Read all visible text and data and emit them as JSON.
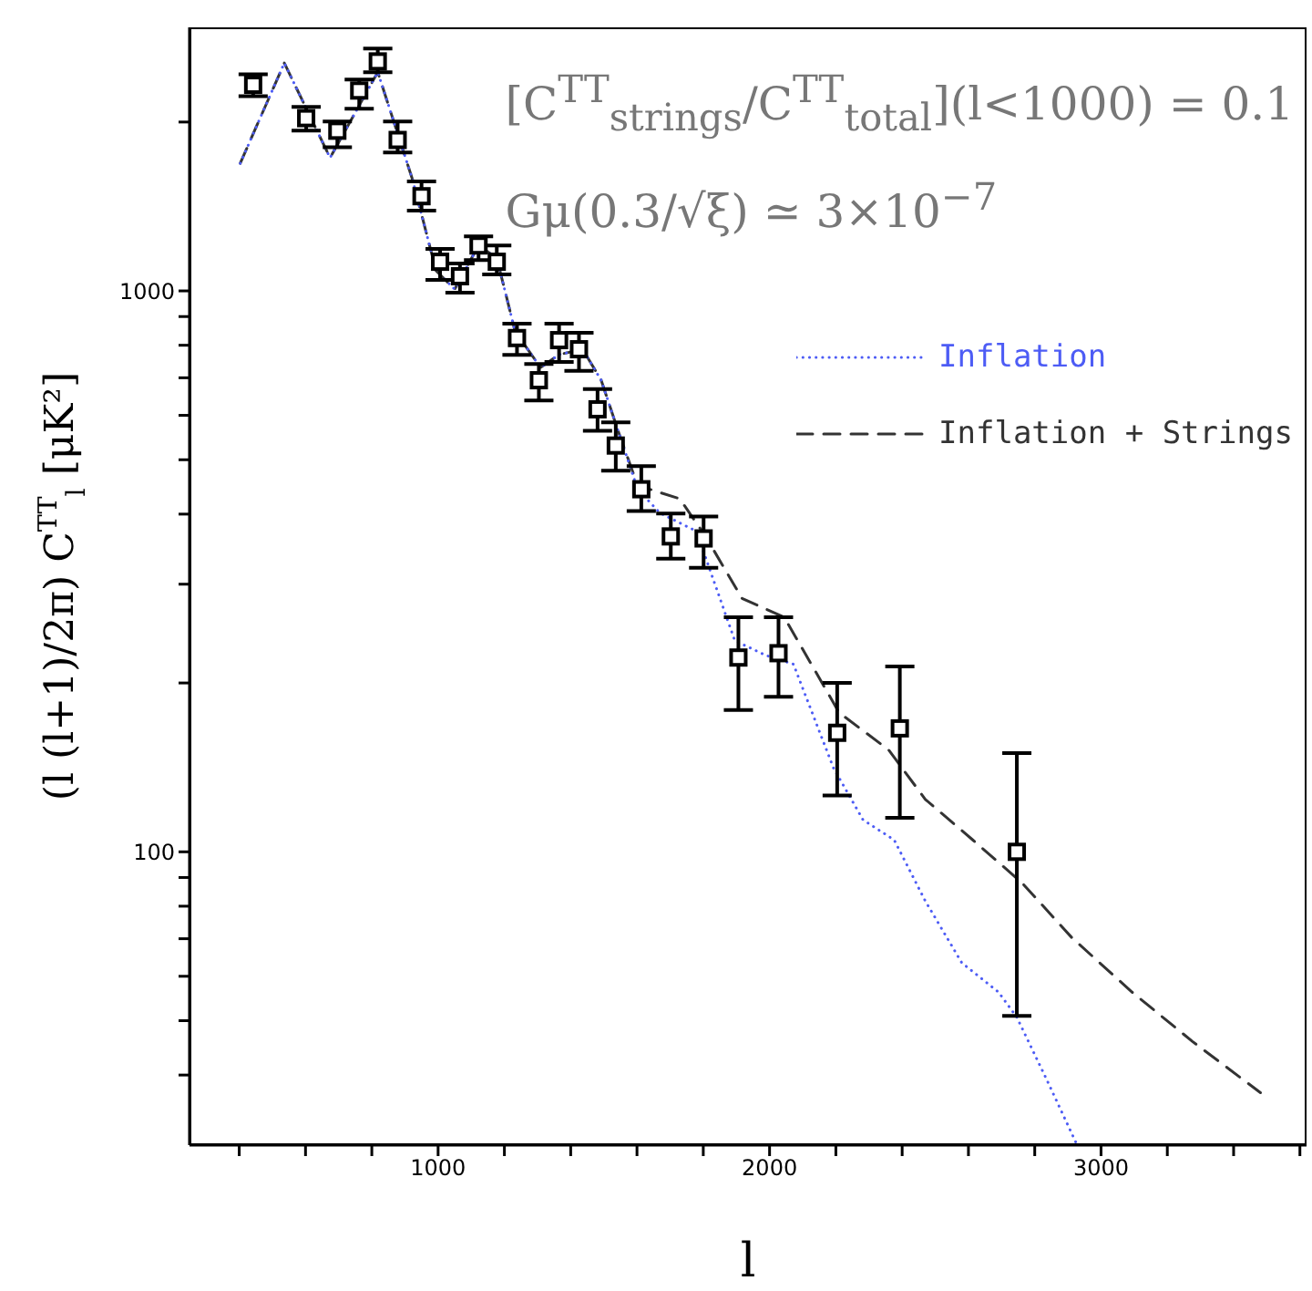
{
  "chart_data": {
    "type": "scatter",
    "xlabel": "l",
    "ylabel": "(l (l+1)/2π) C$^{TT}$$_{l}$ [μK²]",
    "annotations": [
      "[C$^{TT}$$_{strings}$/C$^{TT}$$_{total}$](l<1000) = 0.1",
      "Gμ(0.3/√ξ) ≃ 3×10$^{−7}$"
    ],
    "log": "y",
    "xlim": [
      250,
      3620
    ],
    "ylim": [
      30,
      2950
    ],
    "xticks": [
      {
        "value": 400,
        "label": null
      },
      {
        "value": 600,
        "label": null
      },
      {
        "value": 800,
        "label": null
      },
      1000,
      {
        "value": 1200,
        "label": null
      },
      {
        "value": 1400,
        "label": null
      },
      {
        "value": 1600,
        "label": null
      },
      {
        "value": 1800,
        "label": null
      },
      2000,
      {
        "value": 2200,
        "label": null
      },
      {
        "value": 2400,
        "label": null
      },
      {
        "value": 2600,
        "label": null
      },
      {
        "value": 2800,
        "label": null
      },
      3000,
      {
        "value": 3200,
        "label": null
      },
      {
        "value": 3400,
        "label": null
      },
      {
        "value": 3600,
        "label": null
      }
    ],
    "yticks": [
      {
        "value": 40,
        "label": null
      },
      {
        "value": 50,
        "label": null
      },
      {
        "value": 60,
        "label": null
      },
      {
        "value": 70,
        "label": null
      },
      {
        "value": 80,
        "label": null
      },
      {
        "value": 90,
        "label": null
      },
      100,
      {
        "value": 200,
        "label": null
      },
      {
        "value": 300,
        "label": null
      },
      {
        "value": 400,
        "label": null
      },
      {
        "value": 500,
        "label": null
      },
      {
        "value": 600,
        "label": null
      },
      {
        "value": 700,
        "label": null
      },
      {
        "value": 800,
        "label": null
      },
      {
        "value": 900,
        "label": null
      },
      1000,
      {
        "value": 2000,
        "label": null
      }
    ],
    "grid": false,
    "legend": "right",
    "series": [
      {
        "marker": "square",
        "color": "#000000",
        "x": [
          442,
          602,
          696,
          762,
          818,
          878,
          950,
          1006,
          1066,
          1122,
          1177,
          1238,
          1304,
          1365,
          1425,
          1481,
          1536,
          1613,
          1702,
          1801,
          1906,
          2027,
          2204,
          2393,
          2746
        ],
        "values": [
          2330,
          2032,
          1930,
          2276,
          2565,
          1858,
          1475,
          1127,
          1062,
          1205,
          1127,
          824,
          693,
          817,
          787,
          615,
          530,
          443,
          365,
          362,
          222,
          226,
          163,
          166,
          100
        ],
        "errors": [
          [
            2223,
            2433
          ],
          [
            1930,
            2128
          ],
          [
            1804,
            2004
          ],
          [
            2113,
            2381
          ],
          [
            2453,
            2704
          ],
          [
            1765,
            2004
          ],
          [
            1390,
            1567
          ],
          [
            1046,
            1188
          ],
          [
            993,
            1119
          ],
          [
            1135,
            1251
          ],
          [
            1070,
            1205
          ],
          [
            769,
            874
          ],
          [
            638,
            741
          ],
          [
            747,
            874
          ],
          [
            720,
            842
          ],
          [
            563,
            668
          ],
          [
            478,
            583
          ],
          [
            405,
            487
          ],
          [
            333,
            401
          ],
          [
            321,
            396
          ],
          [
            179,
            262
          ],
          [
            189,
            262
          ],
          [
            126,
            200
          ],
          [
            115,
            214
          ],
          [
            51,
            150
          ]
        ]
      },
      {
        "type": "line",
        "name": "Inflation",
        "color": "#4d5cf5",
        "line_style": "dotted",
        "marker": "none",
        "x": [
          403,
          536,
          674,
          818,
          923,
          994,
          1050,
          1122,
          1177,
          1232,
          1309,
          1365,
          1436,
          1492,
          1547,
          1602,
          1669,
          1779,
          1895,
          1989,
          2072,
          2193,
          2282,
          2376,
          2470,
          2580,
          2691,
          2746,
          2834,
          2928
        ],
        "values": [
          1688,
          2548,
          1727,
          2455,
          1578,
          1086,
          1007,
          1205,
          1144,
          848,
          730,
          770,
          787,
          693,
          554,
          443,
          402,
          373,
          238,
          224,
          216,
          141,
          114,
          105,
          81.7,
          63.4,
          56.2,
          50.7,
          39.5,
          30
        ]
      },
      {
        "type": "line",
        "name": "Inflation + Strings",
        "color": "#333333",
        "line_style": "dashed",
        "marker": "none",
        "x": [
          403,
          536,
          674,
          818,
          923,
          994,
          1050,
          1122,
          1177,
          1232,
          1309,
          1365,
          1436,
          1492,
          1547,
          1602,
          1729,
          1807,
          1917,
          2044,
          2138,
          2210,
          2359,
          2470,
          2613,
          2762,
          2912,
          3094,
          3276,
          3481
        ],
        "values": [
          1688,
          2548,
          1727,
          2455,
          1578,
          1086,
          1007,
          1205,
          1144,
          848,
          730,
          770,
          787,
          693,
          554,
          450,
          426,
          365,
          283,
          262,
          210,
          177,
          152,
          124,
          105,
          88,
          70.3,
          56.2,
          45.9,
          37.2
        ]
      }
    ]
  }
}
